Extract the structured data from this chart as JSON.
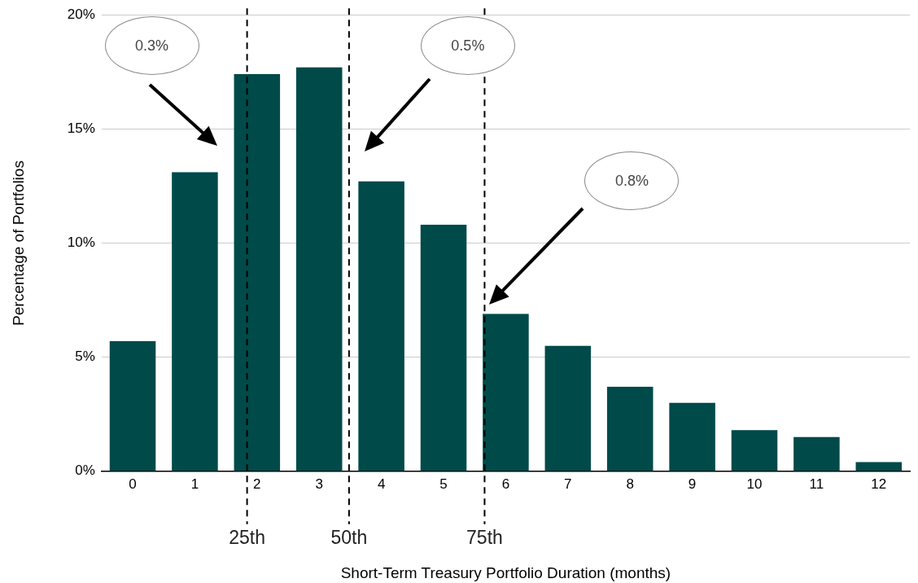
{
  "chart_data": {
    "type": "bar",
    "xlabel": "Short-Term Treasury Portfolio Duration (months)",
    "ylabel": "Percentage of Portfolios",
    "x": [
      0,
      1,
      2,
      3,
      4,
      5,
      6,
      7,
      8,
      9,
      10,
      11,
      12
    ],
    "values": [
      5.7,
      13.1,
      17.4,
      17.7,
      12.7,
      10.8,
      6.9,
      5.5,
      3.7,
      3.0,
      1.8,
      1.5,
      0.4
    ],
    "color": "#004a4a",
    "xlim": [
      -0.5,
      12.5
    ],
    "xticks": [
      0,
      1,
      2,
      3,
      4,
      5,
      6,
      7,
      8,
      9,
      10,
      11,
      12
    ],
    "ylim": [
      0,
      20
    ],
    "yticks": [
      {
        "value": 0,
        "label": "0%"
      },
      {
        "value": 5,
        "label": "5%"
      },
      {
        "value": 10,
        "label": "10%"
      },
      {
        "value": 15,
        "label": "15%"
      },
      {
        "value": 20,
        "label": "20%"
      }
    ],
    "grid": "y",
    "legend": false,
    "ref_lines": [
      {
        "axis": "x",
        "value": 1.84,
        "label": "25th",
        "line_style": "dashed",
        "color": "#000000"
      },
      {
        "axis": "x",
        "value": 3.48,
        "label": "50th",
        "line_style": "dashed",
        "color": "#000000"
      },
      {
        "axis": "x",
        "value": 5.66,
        "label": "75th",
        "line_style": "dashed",
        "color": "#000000"
      }
    ],
    "annotations": [
      "0.3%",
      "0.5%",
      "0.8%"
    ]
  }
}
